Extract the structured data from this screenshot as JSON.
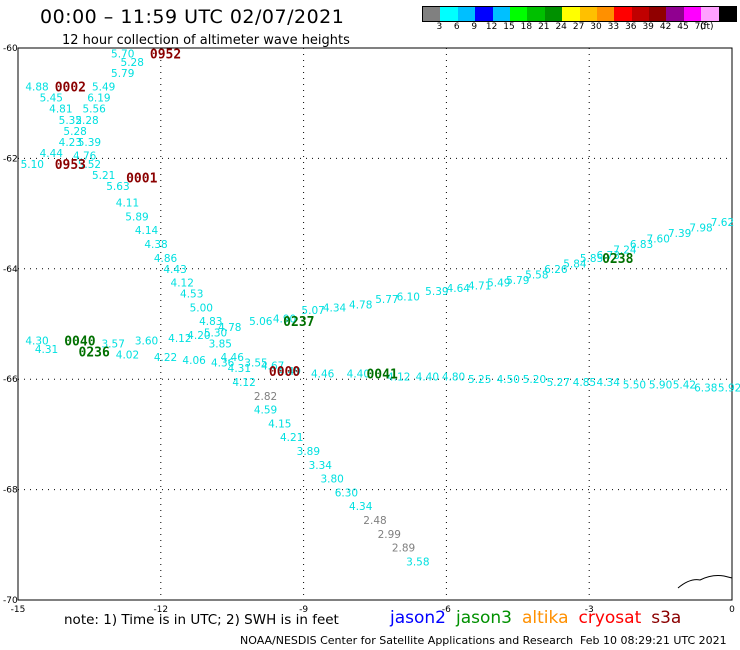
{
  "header": {
    "title": "00:00 – 11:59 UTC 02/07/2021",
    "subtitle": "12 hour collection of altimeter wave heights"
  },
  "legend": {
    "colors": [
      "#808080",
      "#00ffff",
      "#00bfff",
      "#0000ff",
      "#00c0ff",
      "#00ff00",
      "#00c000",
      "#009000",
      "#ffff00",
      "#ffc000",
      "#ff9000",
      "#ff0000",
      "#c00000",
      "#900000",
      "#900090",
      "#ff00ff",
      "#ffa0ff",
      "#000000"
    ],
    "ticks": [
      "3",
      "6",
      "9",
      "12",
      "15",
      "18",
      "21",
      "24",
      "27",
      "30",
      "33",
      "36",
      "39",
      "42",
      "45",
      "70"
    ],
    "unit": "(ft)"
  },
  "map": {
    "lon_range": [
      -15,
      0
    ],
    "lat_range": [
      -70,
      -60
    ],
    "x_ticks": [
      "-15",
      "-12",
      "-9",
      "-6",
      "-3",
      "0"
    ],
    "y_ticks": [
      "-60",
      "-62",
      "-64",
      "-66",
      "-68",
      "-70"
    ],
    "obs_color": "#00e0e0",
    "obs_gray": "#808080"
  },
  "chart_data": {
    "type": "scatter",
    "tracks": [
      {
        "color": "#00e0e0",
        "points": [
          {
            "lon": -12.8,
            "lat": -60.1,
            "v": "5.70"
          },
          {
            "lon": -12.6,
            "lat": -60.25,
            "v": "5.28"
          },
          {
            "lon": -12.8,
            "lat": -60.45,
            "v": "5.79"
          },
          {
            "lon": -14.6,
            "lat": -60.7,
            "v": "4.88"
          },
          {
            "lon": -13.2,
            "lat": -60.7,
            "v": "5.49"
          },
          {
            "lon": -14.3,
            "lat": -60.9,
            "v": "5.45"
          },
          {
            "lon": -13.3,
            "lat": -60.9,
            "v": "6.19"
          },
          {
            "lon": -14.1,
            "lat": -61.1,
            "v": "4.81"
          },
          {
            "lon": -13.4,
            "lat": -61.1,
            "v": "5.56"
          },
          {
            "lon": -13.9,
            "lat": -61.3,
            "v": "5.32"
          },
          {
            "lon": -13.55,
            "lat": -61.3,
            "v": "5.28"
          },
          {
            "lon": -13.8,
            "lat": -61.5,
            "v": "5.28"
          },
          {
            "lon": -13.9,
            "lat": -61.7,
            "v": "4.23"
          },
          {
            "lon": -13.5,
            "lat": -61.7,
            "v": "5.39"
          },
          {
            "lon": -14.3,
            "lat": -61.9,
            "v": "4.44"
          },
          {
            "lon": -13.6,
            "lat": -61.95,
            "v": "4.76"
          },
          {
            "lon": -14.7,
            "lat": -62.1,
            "v": "5.10"
          },
          {
            "lon": -13.5,
            "lat": -62.1,
            "v": "5.52"
          },
          {
            "lon": -13.2,
            "lat": -62.3,
            "v": "5.21"
          },
          {
            "lon": -12.9,
            "lat": -62.5,
            "v": "5.63"
          },
          {
            "lon": -12.7,
            "lat": -62.8,
            "v": "4.11"
          },
          {
            "lon": -12.5,
            "lat": -63.05,
            "v": "5.89"
          },
          {
            "lon": -12.3,
            "lat": -63.3,
            "v": "4.14"
          },
          {
            "lon": -12.1,
            "lat": -63.55,
            "v": "4.38"
          },
          {
            "lon": -11.9,
            "lat": -63.8,
            "v": "4.86"
          },
          {
            "lon": -11.7,
            "lat": -64.0,
            "v": "4.43"
          },
          {
            "lon": -11.55,
            "lat": -64.25,
            "v": "4.12"
          },
          {
            "lon": -11.35,
            "lat": -64.45,
            "v": "4.53"
          },
          {
            "lon": -11.15,
            "lat": -64.7,
            "v": "5.00"
          },
          {
            "lon": -10.95,
            "lat": -64.95,
            "v": "4.83"
          },
          {
            "lon": -10.85,
            "lat": -65.15,
            "v": "5.30"
          },
          {
            "lon": -10.75,
            "lat": -65.35,
            "v": "3.85"
          },
          {
            "lon": -10.5,
            "lat": -65.6,
            "v": "4.46"
          },
          {
            "lon": -10.35,
            "lat": -65.8,
            "v": "4.31"
          },
          {
            "lon": -10.25,
            "lat": -66.05,
            "v": "4.12"
          }
        ]
      },
      {
        "color": "#808080",
        "points": [
          {
            "lon": -9.8,
            "lat": -66.3,
            "v": "2.82"
          }
        ]
      },
      {
        "color": "#00e0e0",
        "points": [
          {
            "lon": -9.8,
            "lat": -66.55,
            "v": "4.59"
          },
          {
            "lon": -9.5,
            "lat": -66.8,
            "v": "4.15"
          },
          {
            "lon": -9.25,
            "lat": -67.05,
            "v": "4.21"
          },
          {
            "lon": -8.9,
            "lat": -67.3,
            "v": "3.89"
          },
          {
            "lon": -8.65,
            "lat": -67.55,
            "v": "3.34"
          },
          {
            "lon": -8.4,
            "lat": -67.8,
            "v": "3.80"
          },
          {
            "lon": -8.1,
            "lat": -68.05,
            "v": "6.30"
          },
          {
            "lon": -7.8,
            "lat": -68.3,
            "v": "4.34"
          }
        ]
      },
      {
        "color": "#808080",
        "points": [
          {
            "lon": -7.5,
            "lat": -68.55,
            "v": "2.48"
          },
          {
            "lon": -7.2,
            "lat": -68.8,
            "v": "2.99"
          },
          {
            "lon": -6.9,
            "lat": -69.05,
            "v": "2.89"
          }
        ]
      },
      {
        "color": "#00e0e0",
        "points": [
          {
            "lon": -6.6,
            "lat": -69.3,
            "v": "3.58"
          },
          {
            "lon": -14.6,
            "lat": -65.3,
            "v": "4.30"
          },
          {
            "lon": -14.4,
            "lat": -65.45,
            "v": "4.31"
          },
          {
            "lon": -13.0,
            "lat": -65.35,
            "v": "3.57"
          },
          {
            "lon": -12.3,
            "lat": -65.3,
            "v": "3.60"
          },
          {
            "lon": -11.6,
            "lat": -65.25,
            "v": "4.12"
          },
          {
            "lon": -12.7,
            "lat": -65.55,
            "v": "4.02"
          },
          {
            "lon": -11.9,
            "lat": -65.6,
            "v": "4.22"
          },
          {
            "lon": -11.3,
            "lat": -65.65,
            "v": "4.06"
          },
          {
            "lon": -10.7,
            "lat": -65.7,
            "v": "4.36"
          },
          {
            "lon": -10.0,
            "lat": -65.7,
            "v": "3.55"
          },
          {
            "lon": -9.65,
            "lat": -65.75,
            "v": "4.67"
          },
          {
            "lon": -11.2,
            "lat": -65.2,
            "v": "4.20"
          },
          {
            "lon": -10.55,
            "lat": -65.05,
            "v": "4.78"
          },
          {
            "lon": -9.9,
            "lat": -64.95,
            "v": "5.06"
          },
          {
            "lon": -9.4,
            "lat": -64.9,
            "v": "4.90"
          },
          {
            "lon": -8.8,
            "lat": -64.75,
            "v": "5.07"
          },
          {
            "lon": -8.35,
            "lat": -64.7,
            "v": "4.34"
          },
          {
            "lon": -7.8,
            "lat": -64.65,
            "v": "4.78"
          },
          {
            "lon": -7.25,
            "lat": -64.55,
            "v": "5.77"
          },
          {
            "lon": -6.8,
            "lat": -64.5,
            "v": "6.10"
          },
          {
            "lon": -6.2,
            "lat": -64.4,
            "v": "5.39"
          },
          {
            "lon": -5.75,
            "lat": -64.35,
            "v": "4.64"
          },
          {
            "lon": -5.3,
            "lat": -64.3,
            "v": "4.71"
          },
          {
            "lon": -4.9,
            "lat": -64.25,
            "v": "5.49"
          },
          {
            "lon": -4.5,
            "lat": -64.2,
            "v": "5.79"
          },
          {
            "lon": -4.1,
            "lat": -64.1,
            "v": "5.58"
          },
          {
            "lon": -3.7,
            "lat": -64.0,
            "v": "6.26"
          },
          {
            "lon": -3.3,
            "lat": -63.9,
            "v": "5.84"
          },
          {
            "lon": -2.95,
            "lat": -63.8,
            "v": "5.85"
          },
          {
            "lon": -2.6,
            "lat": -63.75,
            "v": "6.73"
          },
          {
            "lon": -2.25,
            "lat": -63.65,
            "v": "7.24"
          },
          {
            "lon": -1.9,
            "lat": -63.55,
            "v": "6.83"
          },
          {
            "lon": -1.55,
            "lat": -63.45,
            "v": "7.60"
          },
          {
            "lon": -1.1,
            "lat": -63.35,
            "v": "7.39"
          },
          {
            "lon": -0.65,
            "lat": -63.25,
            "v": "7.98"
          },
          {
            "lon": -0.2,
            "lat": -63.15,
            "v": "7.62"
          },
          {
            "lon": -9.3,
            "lat": -65.85,
            "v": "4.49"
          },
          {
            "lon": -8.6,
            "lat": -65.9,
            "v": "4.46"
          },
          {
            "lon": -7.85,
            "lat": -65.9,
            "v": "4.40"
          },
          {
            "lon": -7.0,
            "lat": -65.95,
            "v": "4.12"
          },
          {
            "lon": -6.4,
            "lat": -65.95,
            "v": "4.40"
          },
          {
            "lon": -5.85,
            "lat": -65.95,
            "v": "4.80"
          },
          {
            "lon": -5.3,
            "lat": -66.0,
            "v": "5.25"
          },
          {
            "lon": -4.7,
            "lat": -66.0,
            "v": "4.50"
          },
          {
            "lon": -4.15,
            "lat": -66.0,
            "v": "5.20"
          },
          {
            "lon": -3.65,
            "lat": -66.05,
            "v": "5.27"
          },
          {
            "lon": -3.1,
            "lat": -66.05,
            "v": "4.85"
          },
          {
            "lon": -2.6,
            "lat": -66.05,
            "v": "4.34"
          },
          {
            "lon": -2.05,
            "lat": -66.1,
            "v": "5.50"
          },
          {
            "lon": -1.5,
            "lat": -66.1,
            "v": "5.90"
          },
          {
            "lon": -1.0,
            "lat": -66.1,
            "v": "5.42"
          },
          {
            "lon": -0.55,
            "lat": -66.15,
            "v": "6.38"
          },
          {
            "lon": -0.05,
            "lat": -66.15,
            "v": "5.92"
          }
        ]
      }
    ],
    "time_labels": [
      {
        "lon": -11.9,
        "lat": -60.1,
        "t": "0952",
        "color": "#8b0000"
      },
      {
        "lon": -13.9,
        "lat": -60.7,
        "t": "0002",
        "color": "#8b0000"
      },
      {
        "lon": -13.9,
        "lat": -62.1,
        "t": "0953",
        "color": "#8b0000"
      },
      {
        "lon": -12.4,
        "lat": -62.35,
        "t": "0001",
        "color": "#8b0000"
      },
      {
        "lon": -13.7,
        "lat": -65.3,
        "t": "0040",
        "color": "#007000"
      },
      {
        "lon": -13.4,
        "lat": -65.5,
        "t": "0236",
        "color": "#007000"
      },
      {
        "lon": -9.1,
        "lat": -64.95,
        "t": "0237",
        "color": "#007000"
      },
      {
        "lon": -9.4,
        "lat": -65.85,
        "t": "0000",
        "color": "#8b0000"
      },
      {
        "lon": -7.35,
        "lat": -65.9,
        "t": "0041",
        "color": "#007000"
      },
      {
        "lon": -2.4,
        "lat": -63.8,
        "t": "0238",
        "color": "#007000"
      }
    ]
  },
  "footer": {
    "note": "note: 1) Time is in UTC; 2) SWH is in feet",
    "satellites": [
      {
        "name": "jason2",
        "color": "#0000ff"
      },
      {
        "name": "jason3",
        "color": "#009000"
      },
      {
        "name": "altika",
        "color": "#ff9000"
      },
      {
        "name": "cryosat",
        "color": "#ff0000"
      },
      {
        "name": "s3a",
        "color": "#8b0000"
      }
    ],
    "credit": "NOAA/NESDIS Center for Satellite Applications and Research",
    "timestamp": "Feb 10 08:29:21 UTC 2021"
  }
}
